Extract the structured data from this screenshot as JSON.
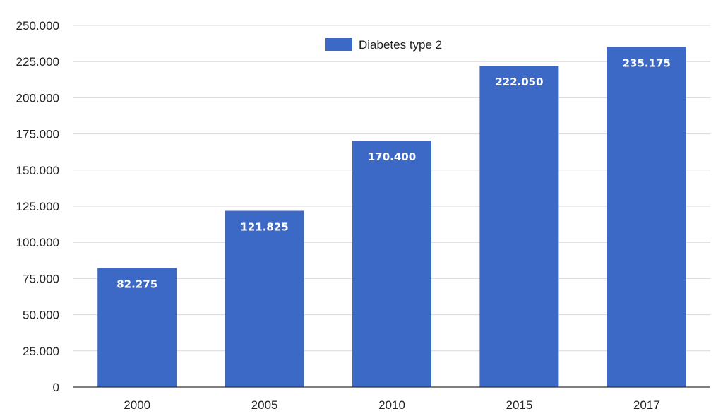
{
  "chart_data": {
    "type": "bar",
    "categories": [
      "2000",
      "2005",
      "2010",
      "2015",
      "2017"
    ],
    "series": [
      {
        "name": "Diabetes type 2",
        "values": [
          82275,
          121825,
          170400,
          222050,
          235175
        ],
        "labels": [
          "82.275",
          "121.825",
          "170.400",
          "222.050",
          "235.175"
        ],
        "color": "#3d69c6"
      }
    ],
    "ylim": [
      0,
      250000
    ],
    "y_ticks": [
      0,
      25000,
      50000,
      75000,
      100000,
      125000,
      150000,
      175000,
      200000,
      225000,
      250000
    ],
    "y_tick_labels": [
      "0",
      "25.000",
      "50.000",
      "75.000",
      "100.000",
      "125.000",
      "150.000",
      "175.000",
      "200.000",
      "225.000",
      "250.000"
    ],
    "grid": true,
    "legend_position": "top"
  }
}
